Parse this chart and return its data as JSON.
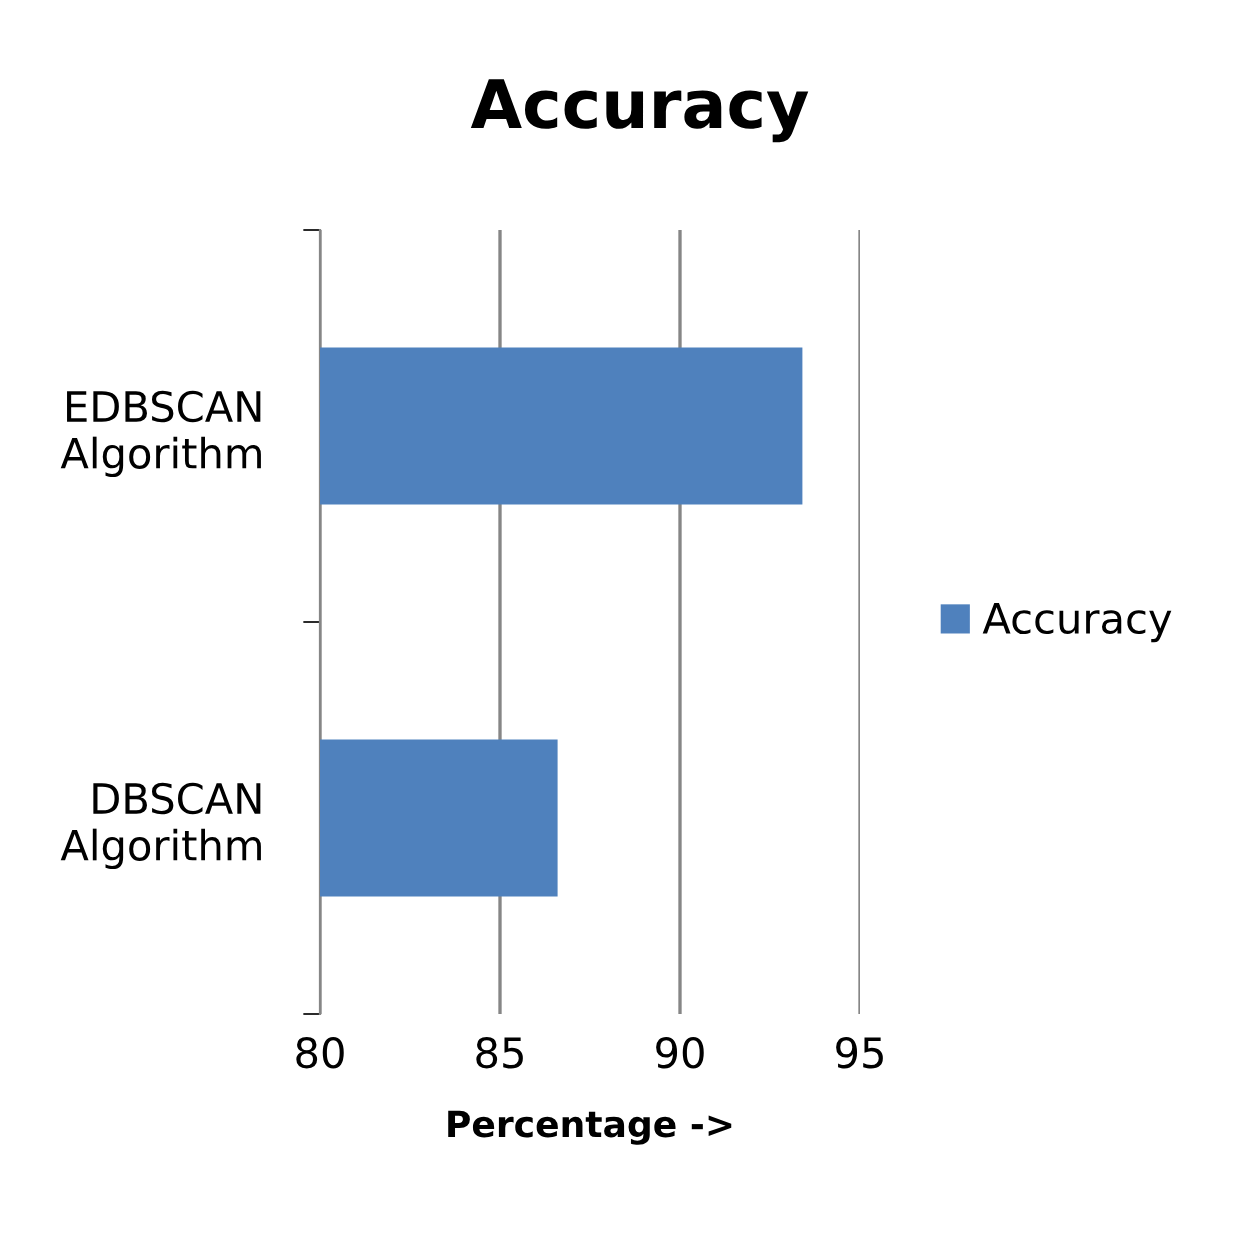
{
  "chart_data": {
    "type": "bar",
    "orientation": "horizontal",
    "title": "Accuracy",
    "xlabel": "Percentage ->",
    "categories": [
      "EDBSCAN\nAlgorithm",
      "DBSCAN\nAlgorithm"
    ],
    "series": [
      {
        "name": "Accuracy",
        "color": "#4f81bd",
        "values": [
          93.4,
          86.6
        ]
      }
    ],
    "xlim": [
      80,
      95
    ],
    "xticks": [
      80,
      85,
      90,
      95
    ],
    "grid": "x",
    "legend": "right"
  }
}
